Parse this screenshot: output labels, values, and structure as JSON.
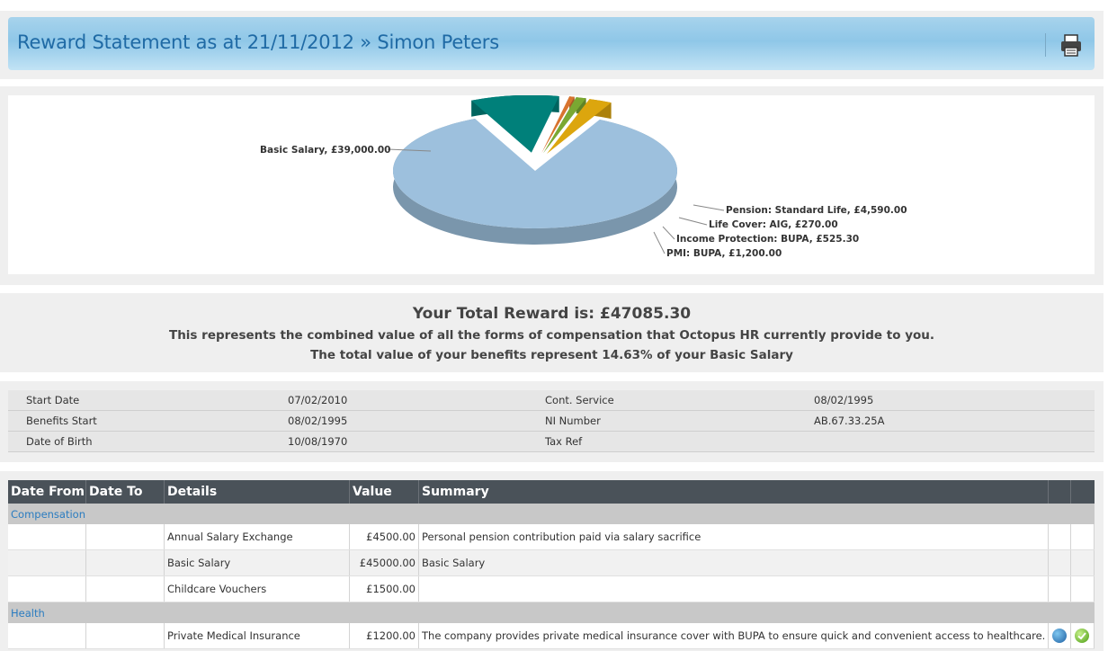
{
  "header": {
    "title": "Reward Statement as at 21/11/2012 » Simon Peters",
    "print_icon": "printer-icon"
  },
  "chart_data": {
    "type": "pie",
    "slices": [
      {
        "label": "Basic Salary, £39,000.00",
        "value": 39000.0,
        "color": "#9dc0dd"
      },
      {
        "label": "Pension: Standard Life, £4,590.00",
        "value": 4590.0,
        "color": "#00807a"
      },
      {
        "label": "Life Cover: AIG, £270.00",
        "value": 270.0,
        "color": "#d8742f"
      },
      {
        "label": "Income Protection: BUPA, £525.30",
        "value": 525.3,
        "color": "#7aa832"
      },
      {
        "label": "PMI: BUPA, £1,200.00",
        "value": 1200.0,
        "color": "#dca60e"
      }
    ]
  },
  "total": {
    "line1": "Your Total Reward is: £47085.30",
    "line2": "This represents the combined value of all the forms of compensation that Octopus HR currently provide to you.",
    "line3": "The total value of your benefits represent 14.63% of your Basic Salary"
  },
  "info": [
    [
      "Start Date",
      "07/02/2010",
      "Cont. Service",
      "08/02/1995"
    ],
    [
      "Benefits Start",
      "08/02/1995",
      "NI Number",
      "AB.67.33.25A"
    ],
    [
      "Date of Birth",
      "10/08/1970",
      "Tax Ref",
      ""
    ]
  ],
  "table": {
    "headers": [
      "Date From",
      "Date To",
      "Details",
      "Value",
      "Summary"
    ],
    "groups": [
      {
        "name": "Compensation",
        "rows": [
          {
            "details": "Annual Salary Exchange",
            "value": "£4500.00",
            "summary": "Personal pension contribution paid via salary sacrifice"
          },
          {
            "details": "Basic Salary",
            "value": "£45000.00",
            "summary": "Basic Salary"
          },
          {
            "details": "Childcare Vouchers",
            "value": "£1500.00",
            "summary": ""
          }
        ]
      },
      {
        "name": "Health",
        "rows": [
          {
            "details": "Private Medical Insurance",
            "value": "£1200.00",
            "summary": "The company provides private medical insurance cover with BUPA to ensure quick and convenient access to healthcare.",
            "icons": [
              "globe-icon",
              "check-icon"
            ]
          }
        ]
      }
    ]
  }
}
